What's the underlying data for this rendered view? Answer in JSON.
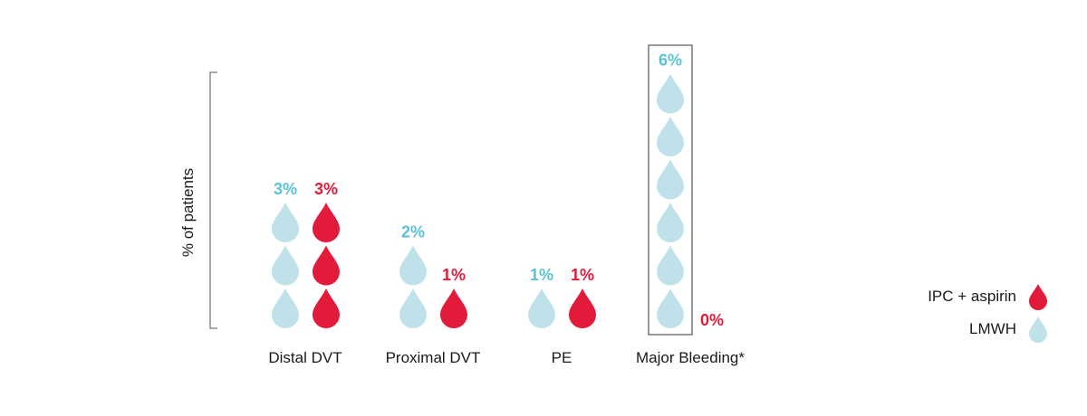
{
  "chart_data": {
    "type": "pictograph",
    "ylabel": "% of patients",
    "categories": [
      "Distal DVT",
      "Proximal DVT",
      "PE",
      "Major Bleeding*"
    ],
    "series": [
      {
        "name": "LMWH",
        "values": [
          3,
          2,
          1,
          6
        ],
        "labels": [
          "3%",
          "2%",
          "1%",
          "6%"
        ],
        "color": "#bfe2ea",
        "label_color": "#5bc2d3"
      },
      {
        "name": "IPC + aspirin",
        "values": [
          3,
          1,
          1,
          0
        ],
        "labels": [
          "3%",
          "1%",
          "1%",
          "0%"
        ],
        "color": "#e31b3b",
        "label_color": "#e31b3b"
      }
    ],
    "unit_per_icon": "1%",
    "icon": "drop-icon",
    "highlighted_category": "Major Bleeding*",
    "legend": {
      "placement": "right",
      "entries": [
        "IPC + aspirin",
        "LMWH"
      ]
    }
  }
}
